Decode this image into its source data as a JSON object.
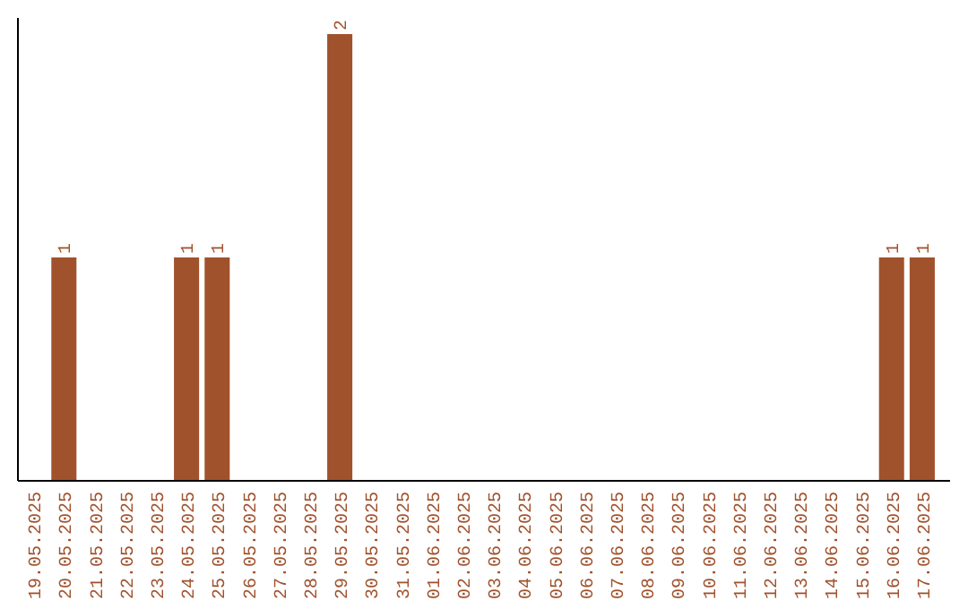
{
  "chart_data": {
    "type": "bar",
    "color": "#a0522d",
    "categories": [
      "19.05.2025",
      "20.05.2025",
      "21.05.2025",
      "22.05.2025",
      "23.05.2025",
      "24.05.2025",
      "25.05.2025",
      "26.05.2025",
      "27.05.2025",
      "28.05.2025",
      "29.05.2025",
      "30.05.2025",
      "31.05.2025",
      "01.06.2025",
      "02.06.2025",
      "03.06.2025",
      "04.06.2025",
      "05.06.2025",
      "06.06.2025",
      "07.06.2025",
      "08.06.2025",
      "09.06.2025",
      "10.06.2025",
      "11.06.2025",
      "12.06.2025",
      "13.06.2025",
      "14.06.2025",
      "15.06.2025",
      "16.06.2025",
      "17.06.2025"
    ],
    "values": [
      0,
      1,
      0,
      0,
      0,
      1,
      1,
      0,
      0,
      0,
      2,
      0,
      0,
      0,
      0,
      0,
      0,
      0,
      0,
      0,
      0,
      0,
      0,
      0,
      0,
      0,
      0,
      0,
      1,
      1
    ],
    "value_labels": [
      null,
      "1",
      null,
      null,
      null,
      "1",
      "1",
      null,
      null,
      null,
      "2",
      null,
      null,
      null,
      null,
      null,
      null,
      null,
      null,
      null,
      null,
      null,
      null,
      null,
      null,
      null,
      null,
      null,
      "1",
      "1"
    ]
  }
}
